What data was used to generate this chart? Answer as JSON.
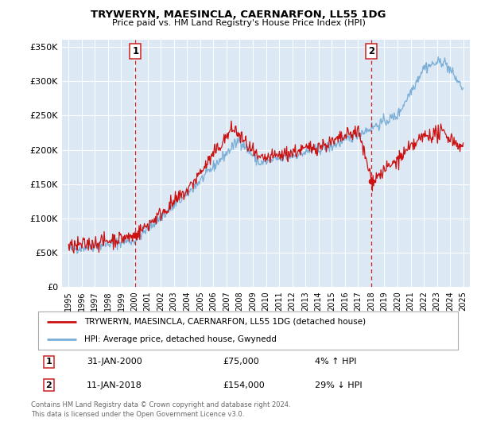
{
  "title": "TRYWERYN, MAESINCLA, CAERNARFON, LL55 1DG",
  "subtitle": "Price paid vs. HM Land Registry's House Price Index (HPI)",
  "legend_line1": "TRYWERYN, MAESINCLA, CAERNARFON, LL55 1DG (detached house)",
  "legend_line2": "HPI: Average price, detached house, Gwynedd",
  "footnote1": "Contains HM Land Registry data © Crown copyright and database right 2024.",
  "footnote2": "This data is licensed under the Open Government Licence v3.0.",
  "annotation1_label": "1",
  "annotation1_date": "31-JAN-2000",
  "annotation1_price": "£75,000",
  "annotation1_hpi": "4% ↑ HPI",
  "annotation2_label": "2",
  "annotation2_date": "11-JAN-2018",
  "annotation2_price": "£154,000",
  "annotation2_hpi": "29% ↓ HPI",
  "sale1_x": 2000.08,
  "sale1_y": 75000,
  "sale2_x": 2018.03,
  "sale2_y": 154000,
  "vline1_x": 2000.08,
  "vline2_x": 2018.03,
  "house_color": "#cc1111",
  "hpi_color": "#7aaed6",
  "vline_color": "#cc2222",
  "plot_bg": "#dce9f5",
  "ylim": [
    0,
    360000
  ],
  "xlim_start": 1994.5,
  "xlim_end": 2025.5,
  "yticks": [
    0,
    50000,
    100000,
    150000,
    200000,
    250000,
    300000,
    350000
  ],
  "ytick_labels": [
    "£0",
    "£50K",
    "£100K",
    "£150K",
    "£200K",
    "£250K",
    "£300K",
    "£350K"
  ],
  "xticks": [
    1995,
    1996,
    1997,
    1998,
    1999,
    2000,
    2001,
    2002,
    2003,
    2004,
    2005,
    2006,
    2007,
    2008,
    2009,
    2010,
    2011,
    2012,
    2013,
    2014,
    2015,
    2016,
    2017,
    2018,
    2019,
    2020,
    2021,
    2022,
    2023,
    2024,
    2025
  ]
}
